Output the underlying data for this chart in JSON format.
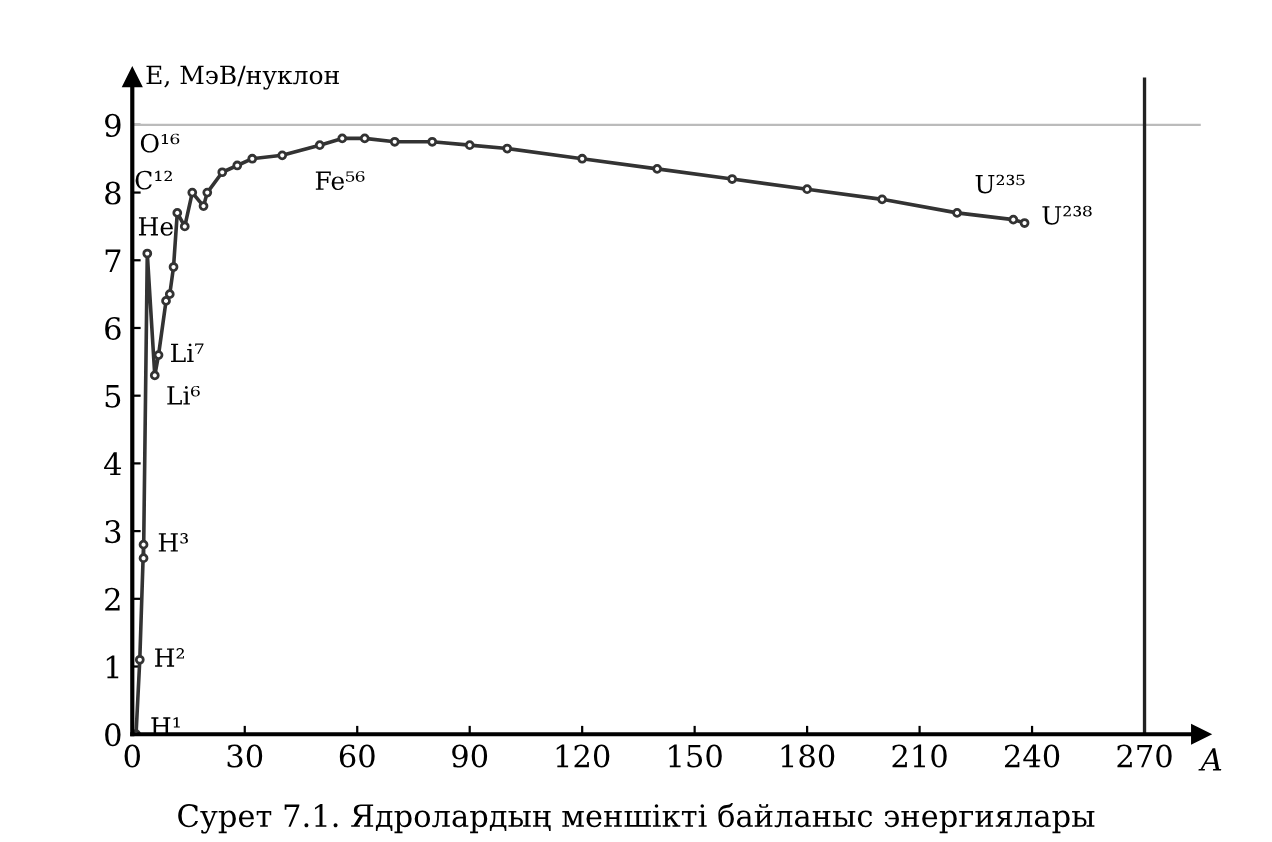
{
  "chart_data": {
    "type": "line",
    "xlabel": "A",
    "ylabel": "E, МэВ/нуклон",
    "x": [
      1,
      2,
      3,
      3,
      4,
      6,
      7,
      9,
      10,
      11,
      12,
      14,
      16,
      19,
      20,
      24,
      28,
      32,
      40,
      50,
      56,
      62,
      70,
      80,
      90,
      100,
      120,
      140,
      160,
      180,
      200,
      220,
      235,
      238
    ],
    "series": [
      {
        "color": "#333333",
        "values": [
          0,
          1.1,
          2.8,
          2.6,
          7.1,
          5.3,
          5.6,
          6.4,
          6.5,
          6.9,
          7.7,
          7.5,
          8.0,
          7.8,
          8.0,
          8.3,
          8.4,
          8.5,
          8.55,
          8.7,
          8.8,
          8.8,
          8.75,
          8.75,
          8.7,
          8.65,
          8.5,
          8.35,
          8.2,
          8.05,
          7.9,
          7.7,
          7.6,
          7.55
        ]
      }
    ],
    "marker": "circle",
    "line_style": "solid",
    "grid": false,
    "xlim": [
      0,
      285
    ],
    "ylim": [
      0,
      9.7
    ],
    "xticks": [
      0,
      30,
      60,
      90,
      120,
      150,
      180,
      210,
      240,
      270
    ],
    "yticks": [
      0,
      1,
      2,
      3,
      4,
      5,
      6,
      7,
      8,
      9
    ],
    "ref_lines": [
      {
        "axis": "y",
        "value": 9,
        "color": "#bbbbbb"
      },
      {
        "axis": "x",
        "value": 270,
        "color": "#222222"
      }
    ],
    "annotations": [
      {
        "text": "H¹",
        "x": 1,
        "y": 0
      },
      {
        "text": "H²",
        "x": 2,
        "y": 1.1
      },
      {
        "text": "H³",
        "x": 3,
        "y": 2.8
      },
      {
        "text": "He",
        "x": 4,
        "y": 7.1
      },
      {
        "text": "Li⁷",
        "x": 7,
        "y": 5.6
      },
      {
        "text": "Li⁶",
        "x": 6,
        "y": 5.3
      },
      {
        "text": "C¹²",
        "x": 12,
        "y": 7.7
      },
      {
        "text": "O¹⁶",
        "x": 16,
        "y": 8.0
      },
      {
        "text": "Fe⁵⁶",
        "x": 56,
        "y": 8.8
      },
      {
        "text": "U²³⁵",
        "x": 235,
        "y": 7.6
      },
      {
        "text": "U²³⁸",
        "x": 238,
        "y": 7.55
      },
      "Сурет 7.1. Ядролардың меншікті байланыс энергиялары"
    ]
  }
}
